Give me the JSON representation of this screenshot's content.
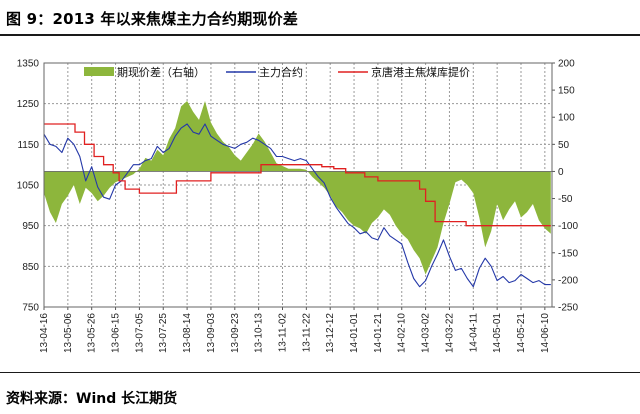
{
  "header": {
    "title": "图 9：2013 年以来焦煤主力合约期现价差"
  },
  "footer": {
    "source": "资料来源：Wind 长江期货"
  },
  "chart_data": {
    "type": "line",
    "title": "图 9：2013 年以来焦煤主力合约期现价差",
    "x_tick_labels": [
      "13-04-16",
      "13-05-06",
      "13-05-26",
      "13-06-15",
      "13-07-05",
      "13-07-25",
      "13-08-14",
      "13-09-03",
      "13-09-23",
      "13-10-13",
      "13-11-02",
      "13-11-22",
      "13-12-12",
      "14-01-01",
      "14-01-21",
      "14-02-10",
      "14-03-02",
      "14-03-22",
      "14-04-11",
      "14-05-01",
      "14-05-21",
      "14-06-10"
    ],
    "y_left": {
      "min": 750,
      "max": 1350,
      "ticks": [
        750,
        850,
        950,
        1050,
        1150,
        1250,
        1350
      ]
    },
    "y_right": {
      "min": -250,
      "max": 200,
      "ticks": [
        -250,
        -200,
        -150,
        -100,
        -50,
        0,
        50,
        100,
        150,
        200
      ]
    },
    "grid": true,
    "legend_position": "top",
    "series": [
      {
        "name": "期现价差（右轴）",
        "kind": "area",
        "axis": "right",
        "color": "#8DB63C",
        "x": [
          "13-04-16",
          "13-04-21",
          "13-04-26",
          "13-05-01",
          "13-05-06",
          "13-05-11",
          "13-05-16",
          "13-05-21",
          "13-05-26",
          "13-05-31",
          "13-06-05",
          "13-06-10",
          "13-06-15",
          "13-06-20",
          "13-06-25",
          "13-06-30",
          "13-07-05",
          "13-07-10",
          "13-07-15",
          "13-07-20",
          "13-07-25",
          "13-07-30",
          "13-08-04",
          "13-08-09",
          "13-08-14",
          "13-08-19",
          "13-08-24",
          "13-08-29",
          "13-09-03",
          "13-09-08",
          "13-09-13",
          "13-09-18",
          "13-09-23",
          "13-09-28",
          "13-10-03",
          "13-10-08",
          "13-10-13",
          "13-10-18",
          "13-10-23",
          "13-10-28",
          "13-11-02",
          "13-11-07",
          "13-11-12",
          "13-11-17",
          "13-11-22",
          "13-11-27",
          "13-12-02",
          "13-12-07",
          "13-12-12",
          "13-12-17",
          "13-12-22",
          "13-12-27",
          "14-01-01",
          "14-01-06",
          "14-01-11",
          "14-01-16",
          "14-01-21",
          "14-01-26",
          "14-01-31",
          "14-02-05",
          "14-02-10",
          "14-02-15",
          "14-02-20",
          "14-02-25",
          "14-03-02",
          "14-03-07",
          "14-03-12",
          "14-03-17",
          "14-03-22",
          "14-03-27",
          "14-04-01",
          "14-04-06",
          "14-04-11",
          "14-04-16",
          "14-04-21",
          "14-04-26",
          "14-05-01",
          "14-05-06",
          "14-05-11",
          "14-05-16",
          "14-05-21",
          "14-05-26",
          "14-05-31",
          "14-06-05",
          "14-06-10",
          "14-06-15"
        ],
        "values": [
          -40,
          -75,
          -95,
          -60,
          -45,
          -25,
          -60,
          -30,
          -40,
          -55,
          -45,
          -30,
          -20,
          -15,
          -10,
          -5,
          5,
          25,
          20,
          40,
          30,
          60,
          80,
          120,
          130,
          110,
          95,
          130,
          90,
          70,
          55,
          45,
          30,
          20,
          35,
          50,
          70,
          55,
          35,
          15,
          10,
          5,
          5,
          5,
          3,
          -10,
          -20,
          -30,
          -45,
          -65,
          -75,
          -90,
          -100,
          -105,
          -115,
          -95,
          -85,
          -70,
          -80,
          -100,
          -115,
          -125,
          -145,
          -160,
          -190,
          -165,
          -140,
          -95,
          -60,
          -20,
          -15,
          -25,
          -40,
          -85,
          -140,
          -110,
          -60,
          -90,
          -70,
          -55,
          -85,
          -75,
          -60,
          -90,
          -105,
          -115
        ]
      },
      {
        "name": "主力合约",
        "kind": "line",
        "axis": "left",
        "color": "#2438A8",
        "x": [
          "13-04-16",
          "13-04-21",
          "13-04-26",
          "13-05-01",
          "13-05-06",
          "13-05-11",
          "13-05-16",
          "13-05-21",
          "13-05-26",
          "13-05-31",
          "13-06-05",
          "13-06-10",
          "13-06-15",
          "13-06-20",
          "13-06-25",
          "13-06-30",
          "13-07-05",
          "13-07-10",
          "13-07-15",
          "13-07-20",
          "13-07-25",
          "13-07-30",
          "13-08-04",
          "13-08-09",
          "13-08-14",
          "13-08-19",
          "13-08-24",
          "13-08-29",
          "13-09-03",
          "13-09-08",
          "13-09-13",
          "13-09-18",
          "13-09-23",
          "13-09-28",
          "13-10-03",
          "13-10-08",
          "13-10-13",
          "13-10-18",
          "13-10-23",
          "13-10-28",
          "13-11-02",
          "13-11-07",
          "13-11-12",
          "13-11-17",
          "13-11-22",
          "13-11-27",
          "13-12-02",
          "13-12-07",
          "13-12-12",
          "13-12-17",
          "13-12-22",
          "13-12-27",
          "14-01-01",
          "14-01-06",
          "14-01-11",
          "14-01-16",
          "14-01-21",
          "14-01-26",
          "14-01-31",
          "14-02-05",
          "14-02-10",
          "14-02-15",
          "14-02-20",
          "14-02-25",
          "14-03-02",
          "14-03-07",
          "14-03-12",
          "14-03-17",
          "14-03-22",
          "14-03-27",
          "14-04-01",
          "14-04-06",
          "14-04-11",
          "14-04-16",
          "14-04-21",
          "14-04-26",
          "14-05-01",
          "14-05-06",
          "14-05-11",
          "14-05-16",
          "14-05-21",
          "14-05-26",
          "14-05-31",
          "14-06-05",
          "14-06-10",
          "14-06-15"
        ],
        "values": [
          1175,
          1150,
          1145,
          1130,
          1165,
          1150,
          1120,
          1060,
          1095,
          1045,
          1020,
          1015,
          1050,
          1060,
          1080,
          1100,
          1100,
          1110,
          1115,
          1145,
          1130,
          1140,
          1170,
          1190,
          1200,
          1180,
          1175,
          1200,
          1170,
          1160,
          1150,
          1145,
          1140,
          1150,
          1155,
          1165,
          1160,
          1150,
          1140,
          1120,
          1120,
          1115,
          1110,
          1115,
          1110,
          1090,
          1070,
          1055,
          1020,
          995,
          975,
          955,
          945,
          930,
          935,
          920,
          915,
          945,
          925,
          915,
          905,
          860,
          820,
          800,
          815,
          850,
          880,
          915,
          875,
          840,
          845,
          820,
          800,
          845,
          870,
          850,
          815,
          825,
          810,
          815,
          830,
          820,
          810,
          815,
          805,
          805
        ]
      },
      {
        "name": "京唐港主焦煤库提价",
        "kind": "step",
        "axis": "left",
        "color": "#E02020",
        "x": [
          "13-04-16",
          "13-05-04",
          "13-05-12",
          "13-05-20",
          "13-05-28",
          "13-06-05",
          "13-06-13",
          "13-06-18",
          "13-06-23",
          "13-07-05",
          "13-07-20",
          "13-08-05",
          "13-09-03",
          "13-10-05",
          "13-10-15",
          "13-11-02",
          "13-12-05",
          "13-12-15",
          "13-12-25",
          "14-01-10",
          "14-01-21",
          "14-02-05",
          "14-02-25",
          "14-03-02",
          "14-03-10",
          "14-04-05",
          "14-04-20",
          "14-05-01",
          "14-05-15",
          "14-06-05",
          "14-06-15"
        ],
        "values": [
          1200,
          1200,
          1180,
          1150,
          1120,
          1100,
          1080,
          1060,
          1040,
          1030,
          1030,
          1060,
          1080,
          1080,
          1100,
          1100,
          1095,
          1090,
          1080,
          1070,
          1060,
          1060,
          1040,
          1010,
          960,
          950,
          950,
          950,
          950,
          950,
          950
        ]
      }
    ]
  }
}
